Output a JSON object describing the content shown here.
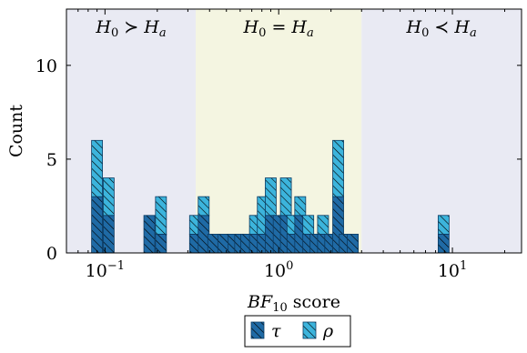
{
  "chart_data": {
    "type": "bar",
    "title": "",
    "xlabel_main": "BF",
    "xlabel_sub": "10",
    "xlabel_rest": " score",
    "ylabel": "Count",
    "x_scale": "log",
    "xlim": [
      0.06,
      25
    ],
    "ylim": [
      0,
      13
    ],
    "y_ticks": [
      0,
      5,
      10
    ],
    "x_ticks": [
      {
        "value": 0.1,
        "base": "10",
        "exp": "−1"
      },
      {
        "value": 1,
        "base": "10",
        "exp": "0"
      },
      {
        "value": 10,
        "base": "10",
        "exp": "1"
      }
    ],
    "regions": [
      {
        "from": 0.06,
        "to": 0.333,
        "color": "#e9eaf3",
        "label_left": "H",
        "label_sub": "0",
        "label_op": " ≻ ",
        "label_right": "H",
        "label_sub2": "a"
      },
      {
        "from": 0.333,
        "to": 3,
        "color": "#f4f5e1",
        "label_left": "H",
        "label_sub": "0",
        "label_op": " = ",
        "label_right": "H",
        "label_sub2": "a"
      },
      {
        "from": 3,
        "to": 25,
        "color": "#e9eaf3",
        "label_left": "H",
        "label_sub": "0",
        "label_op": " ≺ ",
        "label_right": "H",
        "label_sub2": "a"
      }
    ],
    "series": [
      {
        "name": "τ",
        "color": "#1f6aa5",
        "x": [
          0.09,
          0.105,
          0.18,
          0.21,
          0.33,
          0.37,
          0.42,
          0.48,
          0.55,
          0.6,
          0.65,
          0.73,
          0.81,
          0.9,
          1.0,
          1.1,
          1.2,
          1.33,
          1.48,
          1.63,
          1.8,
          1.98,
          2.2,
          2.4,
          2.67,
          8.9
        ],
        "values": [
          3,
          2,
          2,
          1,
          1,
          2,
          1,
          1,
          1,
          1,
          1,
          1,
          1,
          2,
          2,
          2,
          1,
          2,
          1,
          1,
          1,
          1,
          3,
          1,
          1,
          1
        ]
      },
      {
        "name": "ρ",
        "color": "#3cb4dc",
        "x": [
          0.09,
          0.105,
          0.18,
          0.21,
          0.33,
          0.37,
          0.42,
          0.48,
          0.55,
          0.6,
          0.65,
          0.73,
          0.81,
          0.9,
          1.0,
          1.1,
          1.2,
          1.33,
          1.48,
          1.63,
          1.8,
          1.98,
          2.2,
          2.4,
          2.67,
          8.9
        ],
        "values": [
          3,
          2,
          0,
          2,
          1,
          1,
          0,
          0,
          0,
          0,
          0,
          1,
          2,
          2,
          0,
          2,
          1,
          1,
          1,
          0,
          1,
          0,
          3,
          0,
          0,
          1
        ]
      }
    ],
    "legend": {
      "placement": "bottom-center",
      "entries": [
        "τ",
        "ρ"
      ]
    }
  }
}
